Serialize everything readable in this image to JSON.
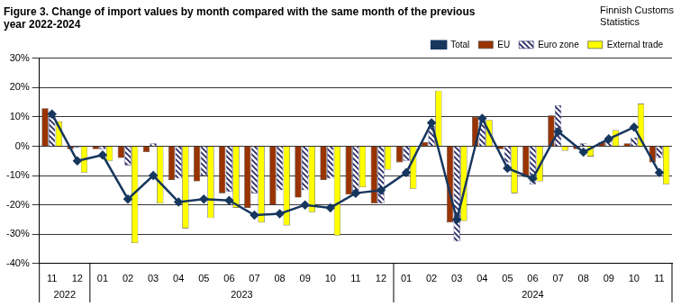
{
  "chart_data": {
    "type": "bar",
    "title": [
      "Figure 3. Change of import values by month compared with the same month of the previous",
      "year 2022-2024"
    ],
    "source": [
      "Finnish Customs",
      "Statistics"
    ],
    "categories": [
      "11",
      "12",
      "01",
      "02",
      "03",
      "04",
      "05",
      "06",
      "07",
      "08",
      "09",
      "10",
      "11",
      "12",
      "01",
      "02",
      "03",
      "04",
      "05",
      "06",
      "07",
      "08",
      "09",
      "10",
      "11"
    ],
    "x_groups": [
      {
        "label": "2022",
        "count": 2
      },
      {
        "label": "2023",
        "count": 12
      },
      {
        "label": "2024",
        "count": 11
      }
    ],
    "series": [
      {
        "name": "EU",
        "color": "#993300",
        "values": [
          13,
          -1,
          -1,
          -4,
          -2,
          -11.5,
          -12,
          -16,
          -21,
          -20,
          -17.5,
          -11.5,
          -16.5,
          -19.5,
          -5.5,
          1.5,
          -26,
          10,
          -1,
          -10.5,
          10.5,
          -1,
          1.5,
          1,
          -5.5
        ]
      },
      {
        "name": "Euro zone",
        "color": "#1f1f5f",
        "line_style": "hatched",
        "values": [
          10,
          -0.5,
          -1,
          -6.5,
          1,
          -11,
          -10,
          -15.5,
          -16,
          -15,
          -15,
          -11,
          -15.5,
          -19.5,
          -5,
          7,
          -32.5,
          9.5,
          -5.5,
          -13,
          14,
          1,
          2,
          3,
          -4
        ]
      },
      {
        "name": "External trade",
        "color": "#ffff00",
        "values": [
          8.5,
          -9,
          -5,
          -33,
          -19.5,
          -28,
          -24.5,
          -21,
          -26,
          -27,
          -22.5,
          -30.5,
          -14,
          -8,
          -14.5,
          19,
          -25.5,
          9,
          -16,
          -12,
          -1.5,
          -3.5,
          5.5,
          14.5,
          -13
        ]
      },
      {
        "name": "Total",
        "type": "line",
        "color": "#17375e",
        "marker": "diamond",
        "values": [
          11,
          -5,
          -3,
          -18,
          -10,
          -19,
          -18,
          -18.5,
          -23.5,
          -23,
          -20,
          -21,
          -16,
          -15,
          -9,
          8,
          -25,
          9.5,
          -7.5,
          -11,
          5,
          -2,
          2.5,
          6.5,
          -9
        ]
      }
    ],
    "ylim": [
      -40,
      30
    ],
    "yticks": [
      {
        "value": -40,
        "label": "-40%"
      },
      {
        "value": -30,
        "label": "-30%"
      },
      {
        "value": -20,
        "label": "-20%"
      },
      {
        "value": -10,
        "label": "-10%"
      },
      {
        "value": 0,
        "label": "0%"
      },
      {
        "value": 10,
        "label": "10%"
      },
      {
        "value": 20,
        "label": "20%"
      },
      {
        "value": 30,
        "label": "30%"
      }
    ],
    "grid": true,
    "legend": "upper right"
  }
}
